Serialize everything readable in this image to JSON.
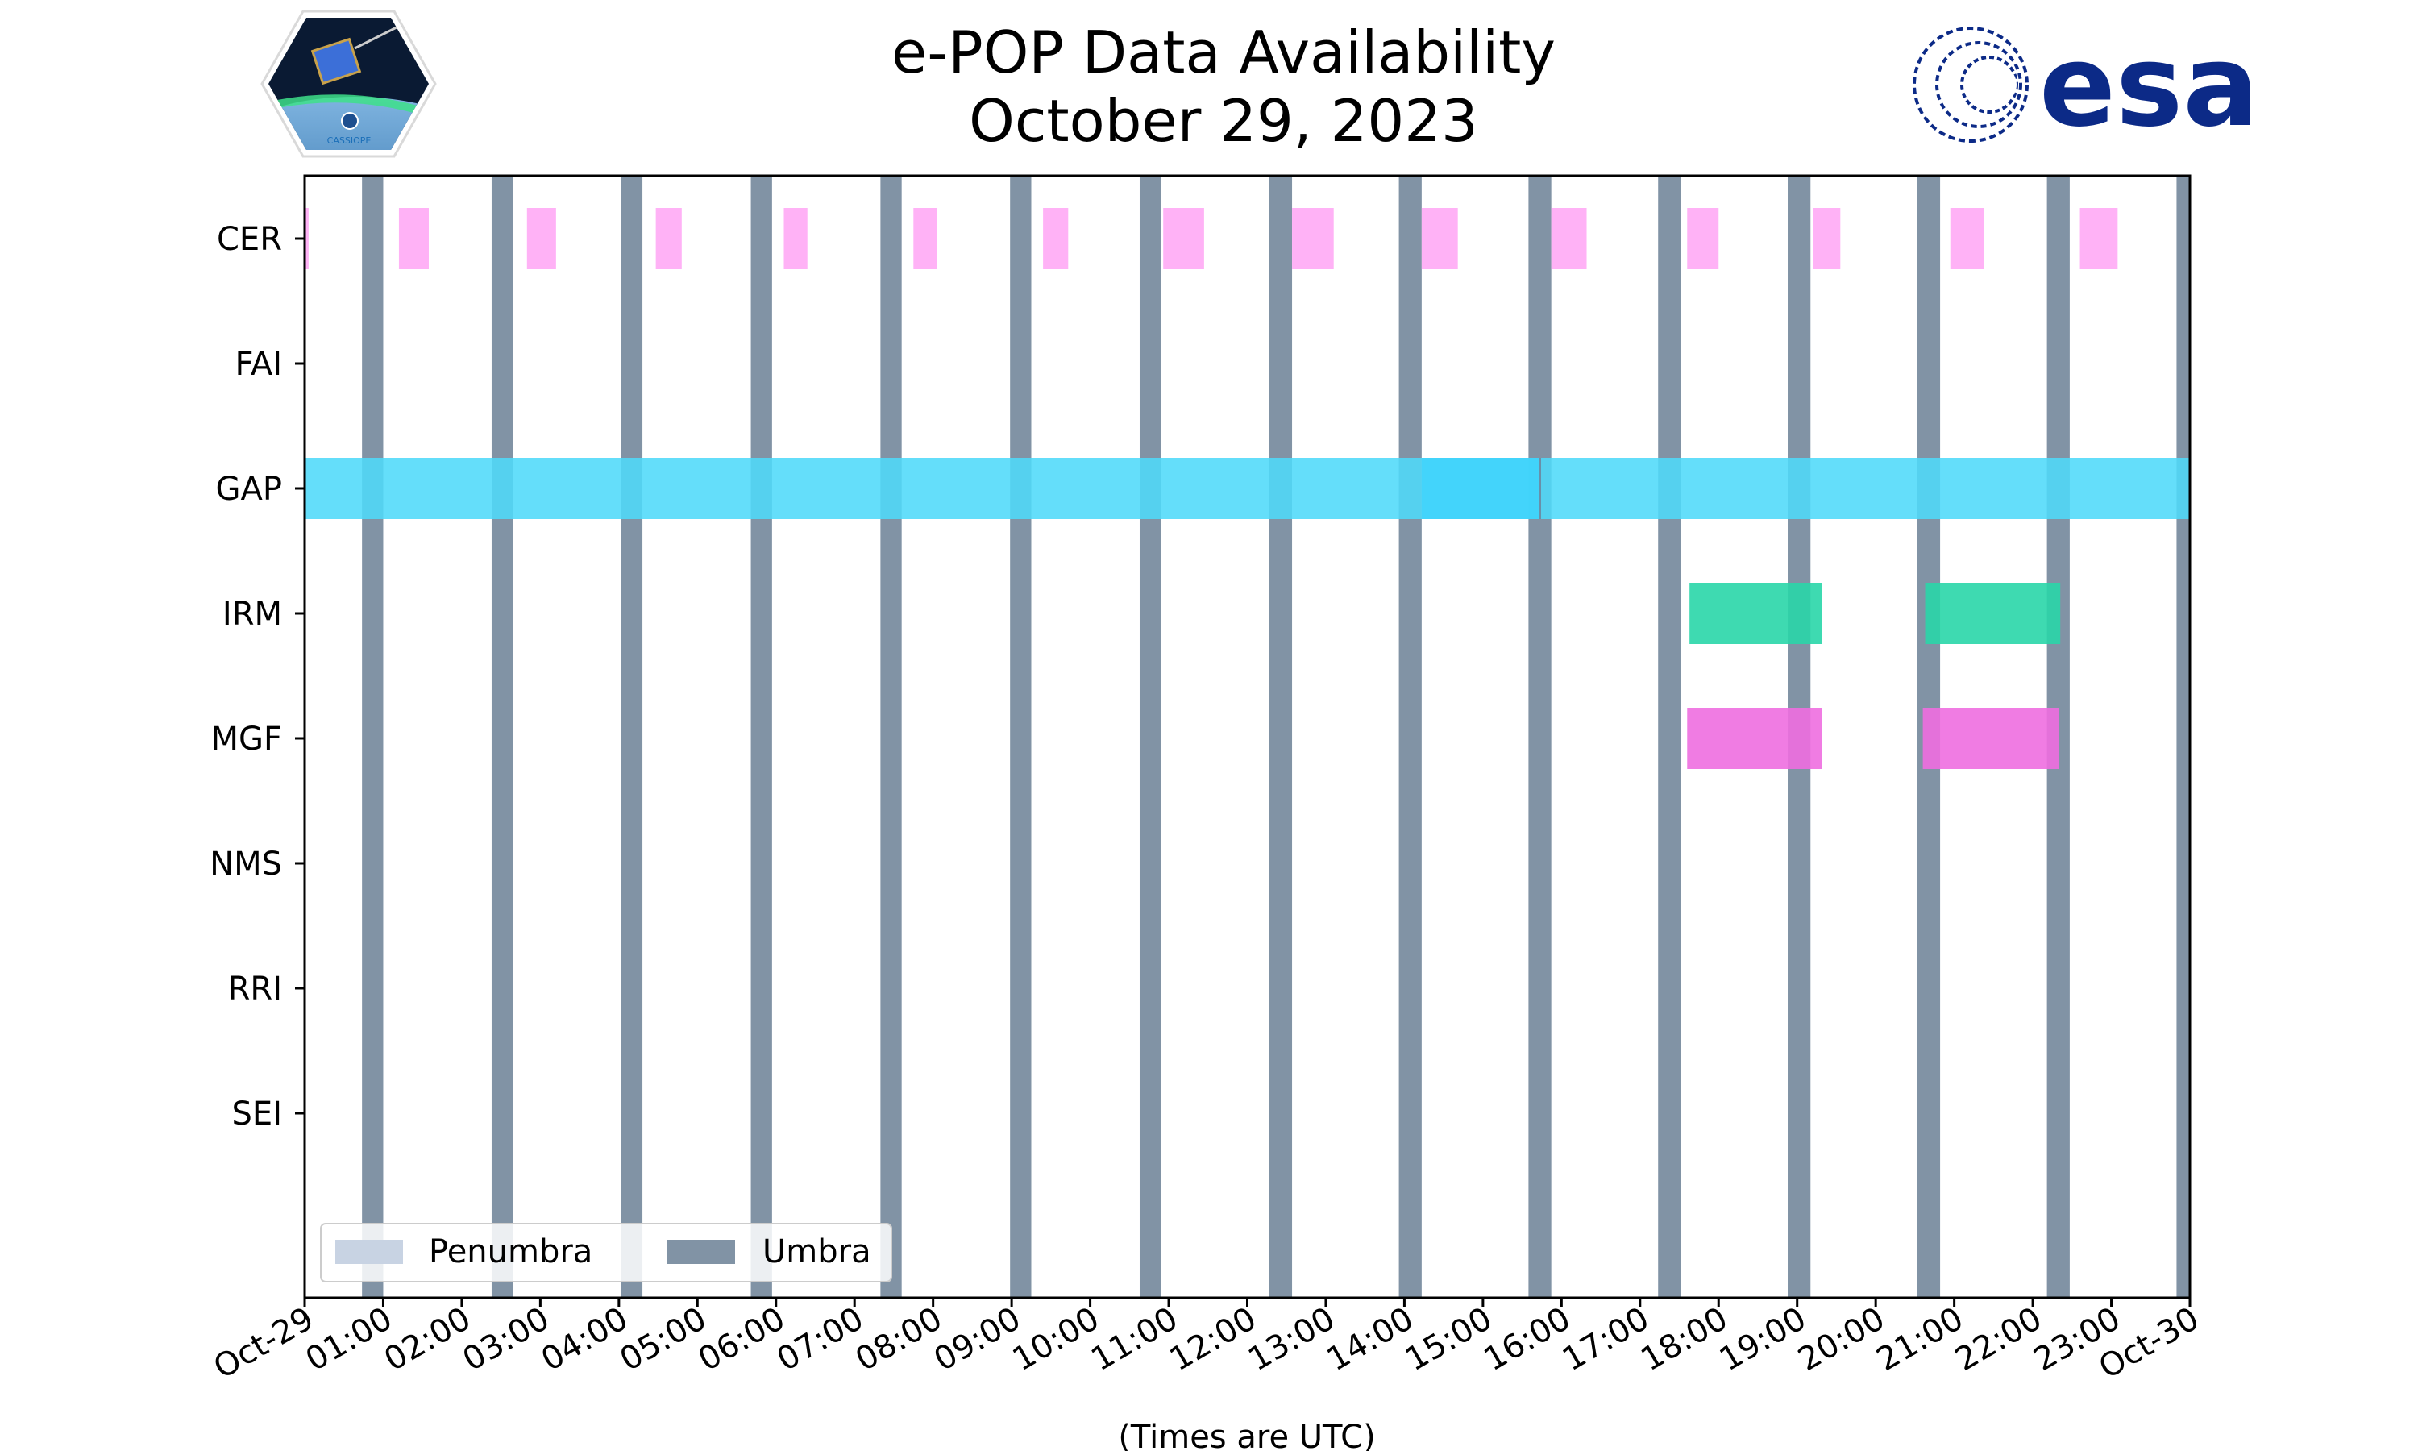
{
  "chart_data": {
    "type": "timeline",
    "title": "e-POP Data Availability",
    "subtitle": "October 29, 2023",
    "xlabel": "(Times are UTC)",
    "x_unit": "hours UTC",
    "xlim": [
      0,
      24
    ],
    "x_tick_labels": [
      "Oct-29",
      "01:00",
      "02:00",
      "03:00",
      "04:00",
      "05:00",
      "06:00",
      "07:00",
      "08:00",
      "09:00",
      "10:00",
      "11:00",
      "12:00",
      "13:00",
      "14:00",
      "15:00",
      "16:00",
      "17:00",
      "18:00",
      "19:00",
      "20:00",
      "21:00",
      "22:00",
      "23:00",
      "Oct-30"
    ],
    "instruments": [
      "CER",
      "FAI",
      "GAP",
      "IRM",
      "MGF",
      "NMS",
      "RRI",
      "SEI"
    ],
    "colors": {
      "CER": "#ffaaf5",
      "GAP": "#4ed9f9",
      "GAP_overlap": "#3fd3fb",
      "IRM": "#29d6a8",
      "MGF": "#ee6ee0",
      "umbra": "#8193a5",
      "penumbra": "#c8d3e3"
    },
    "umbra": [
      [
        0.73,
        1.0
      ],
      [
        2.38,
        2.65
      ],
      [
        4.03,
        4.3
      ],
      [
        5.68,
        5.95
      ],
      [
        7.33,
        7.6
      ],
      [
        8.98,
        9.25
      ],
      [
        10.63,
        10.9
      ],
      [
        12.28,
        12.57
      ],
      [
        13.93,
        14.22
      ],
      [
        15.58,
        15.87
      ],
      [
        17.23,
        17.52
      ],
      [
        18.88,
        19.17
      ],
      [
        20.53,
        20.82
      ],
      [
        22.18,
        22.47
      ],
      [
        23.83,
        24.0
      ]
    ],
    "penumbra": [],
    "series": [
      {
        "name": "CER",
        "intervals": [
          [
            0.0,
            0.05
          ],
          [
            1.2,
            1.58
          ],
          [
            2.83,
            3.2
          ],
          [
            4.47,
            4.8
          ],
          [
            6.1,
            6.4
          ],
          [
            7.75,
            8.05
          ],
          [
            9.4,
            9.72
          ],
          [
            10.93,
            11.45
          ],
          [
            12.57,
            13.1
          ],
          [
            14.22,
            14.68
          ],
          [
            15.87,
            16.32
          ],
          [
            17.6,
            18.0
          ],
          [
            19.2,
            19.55
          ],
          [
            20.95,
            21.38
          ],
          [
            22.6,
            23.08
          ]
        ]
      },
      {
        "name": "FAI",
        "intervals": []
      },
      {
        "name": "GAP",
        "intervals": [
          [
            0.0,
            24.0
          ]
        ],
        "overlap": [
          [
            14.22,
            15.73
          ]
        ],
        "marker": 15.73
      },
      {
        "name": "IRM",
        "intervals": [
          [
            17.63,
            19.32
          ],
          [
            20.63,
            22.35
          ]
        ]
      },
      {
        "name": "MGF",
        "intervals": [
          [
            17.6,
            19.32
          ],
          [
            20.6,
            22.33
          ]
        ]
      },
      {
        "name": "NMS",
        "intervals": []
      },
      {
        "name": "RRI",
        "intervals": []
      },
      {
        "name": "SEI",
        "intervals": []
      }
    ],
    "legend": {
      "position": "lower-left",
      "entries": [
        {
          "label": "Penumbra",
          "color": "#c8d3e3"
        },
        {
          "label": "Umbra",
          "color": "#8193a5"
        }
      ]
    },
    "grid": false
  },
  "logos": {
    "left": "cassiope-mission-badge",
    "left_caption": "CASSIOPE",
    "right_text": "esa",
    "right_color": "#0c2a87"
  }
}
